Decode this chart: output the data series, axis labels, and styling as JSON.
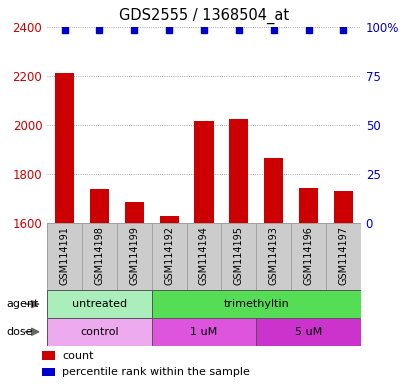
{
  "title": "GDS2555 / 1368504_at",
  "samples": [
    "GSM114191",
    "GSM114198",
    "GSM114199",
    "GSM114192",
    "GSM114194",
    "GSM114195",
    "GSM114193",
    "GSM114196",
    "GSM114197"
  ],
  "counts": [
    2210,
    1740,
    1685,
    1630,
    2015,
    2025,
    1865,
    1745,
    1730
  ],
  "ylim": [
    1600,
    2400
  ],
  "yticks_left": [
    1600,
    1800,
    2000,
    2200,
    2400
  ],
  "right_yticks_pct": [
    0,
    25,
    50,
    75,
    100
  ],
  "right_yticklabels": [
    "0",
    "25",
    "50",
    "75",
    "100%"
  ],
  "bar_color": "#cc0000",
  "dot_color": "#0000cc",
  "agent_groups": [
    {
      "label": "untreated",
      "start": 0,
      "end": 3,
      "color": "#aaeebb"
    },
    {
      "label": "trimethyltin",
      "start": 3,
      "end": 9,
      "color": "#55dd55"
    }
  ],
  "dose_groups": [
    {
      "label": "control",
      "start": 0,
      "end": 3,
      "color": "#eeaaee"
    },
    {
      "label": "1 uM",
      "start": 3,
      "end": 6,
      "color": "#dd55dd"
    },
    {
      "label": "5 uM",
      "start": 6,
      "end": 9,
      "color": "#cc33cc"
    }
  ],
  "agent_label": "agent",
  "dose_label": "dose",
  "legend_items": [
    {
      "label": "count",
      "color": "#cc0000"
    },
    {
      "label": "percentile rank within the sample",
      "color": "#0000cc"
    }
  ],
  "bar_width": 0.55,
  "background_color": "#ffffff",
  "grid_color": "#888888",
  "tick_color_left": "#cc0000",
  "tick_color_right": "#0000cc",
  "label_bg": "#cccccc",
  "label_edge": "#999999"
}
